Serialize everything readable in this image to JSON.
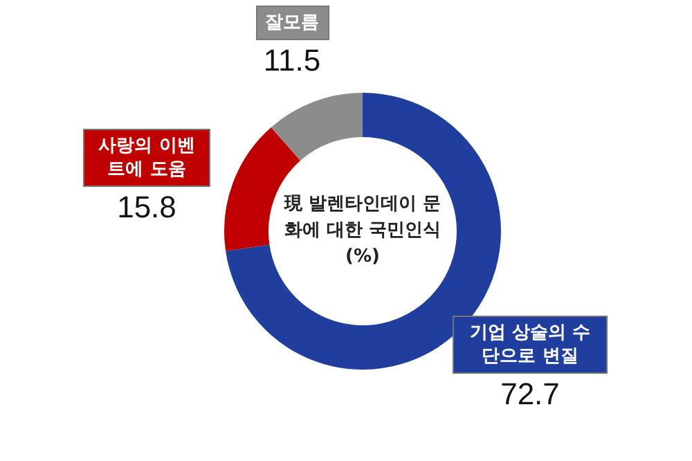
{
  "chart_data": {
    "type": "donut",
    "title": "現 발렌타인데이 문화에 대한 국민인식(%)",
    "categories": [
      "기업 상술의 수단으로 변질",
      "사랑의 이벤트에 도움",
      "잘모름"
    ],
    "values": [
      72.7,
      15.8,
      11.5
    ],
    "colors": [
      "#1f3e9e",
      "#c00000",
      "#8c8c8c"
    ],
    "data_labels": true,
    "legend": false
  }
}
